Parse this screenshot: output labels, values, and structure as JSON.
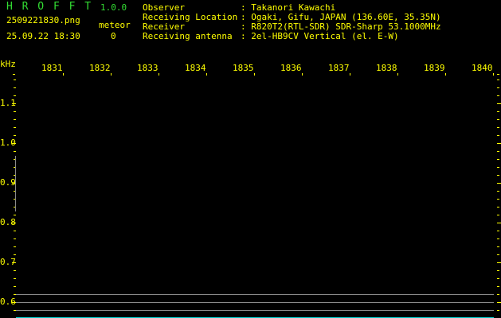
{
  "header": {
    "app_name": "H R O F F T",
    "version": "1.0.0",
    "filename": "2509221830.png",
    "datetime": "25.09.22 18:30",
    "meteor_label": "meteor",
    "meteor_count": "0"
  },
  "info": [
    {
      "label": "Observer",
      "value": ": Takanori Kawachi"
    },
    {
      "label": "Receiving Location",
      "value": ": Ogaki, Gifu, JAPAN (136.60E, 35.35N)"
    },
    {
      "label": "Receiver",
      "value": ": R820T2(RTL-SDR) SDR-Sharp 53.1000MHz"
    },
    {
      "label": "Receiving antenna",
      "value": ": 2el-HB9CV Vertical (el. E-W)"
    }
  ],
  "spectrogram": {
    "unit_label": "kHz",
    "x_ticks": [
      "1831",
      "1832",
      "1833",
      "1834",
      "1835",
      "1836",
      "1837",
      "1838",
      "1839",
      "1840"
    ],
    "y_ticks": [
      "1.1",
      "1.0",
      "0.9",
      "0.8",
      "0.7",
      "0.6"
    ],
    "colors": {
      "text": "#ffff00",
      "title": "#33dd33",
      "lines": "#8a8a8a",
      "baseline": "#00cccc",
      "background": "#000000"
    }
  }
}
